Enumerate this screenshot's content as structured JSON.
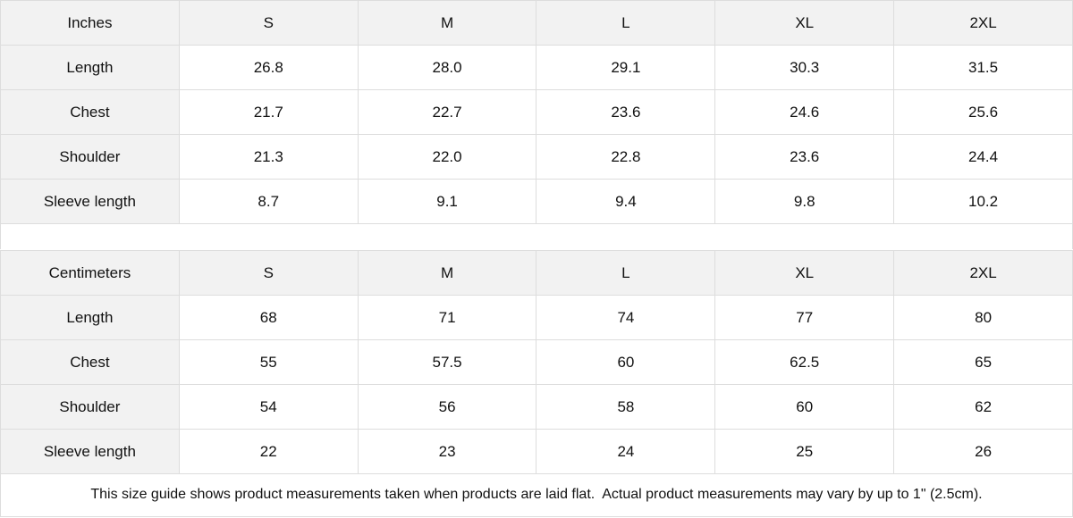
{
  "tables": [
    {
      "unit": "Inches",
      "sizes": [
        "S",
        "M",
        "L",
        "XL",
        "2XL"
      ],
      "rows": [
        {
          "label": "Length",
          "values": [
            "26.8",
            "28.0",
            "29.1",
            "30.3",
            "31.5"
          ]
        },
        {
          "label": "Chest",
          "values": [
            "21.7",
            "22.7",
            "23.6",
            "24.6",
            "25.6"
          ]
        },
        {
          "label": "Shoulder",
          "values": [
            "21.3",
            "22.0",
            "22.8",
            "23.6",
            "24.4"
          ]
        },
        {
          "label": "Sleeve length",
          "values": [
            "8.7",
            "9.1",
            "9.4",
            "9.8",
            "10.2"
          ]
        }
      ]
    },
    {
      "unit": "Centimeters",
      "sizes": [
        "S",
        "M",
        "L",
        "XL",
        "2XL"
      ],
      "rows": [
        {
          "label": "Length",
          "values": [
            "68",
            "71",
            "74",
            "77",
            "80"
          ]
        },
        {
          "label": "Chest",
          "values": [
            "55",
            "57.5",
            "60",
            "62.5",
            "65"
          ]
        },
        {
          "label": "Shoulder",
          "values": [
            "54",
            "56",
            "58",
            "60",
            "62"
          ]
        },
        {
          "label": "Sleeve length",
          "values": [
            "22",
            "23",
            "24",
            "25",
            "26"
          ]
        }
      ]
    }
  ],
  "note": "This size guide shows product measurements taken when products are laid flat.  Actual product measurements may vary by up to 1\" (2.5cm).",
  "colors": {
    "header_bg": "#f2f2f2",
    "border": "#dddddd"
  }
}
